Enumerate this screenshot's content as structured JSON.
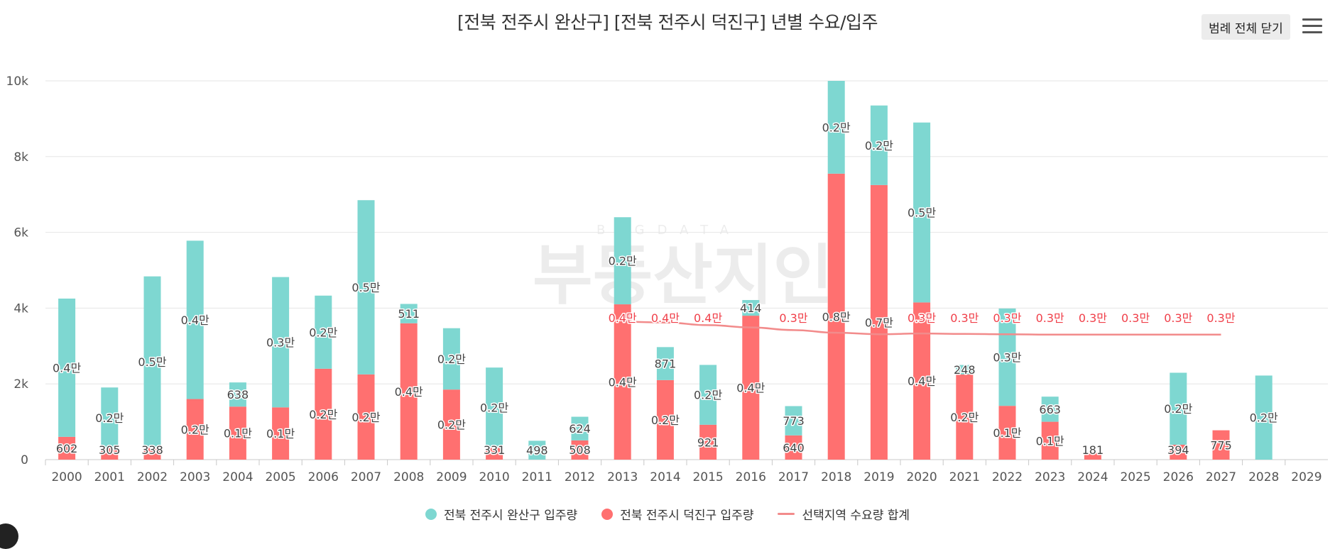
{
  "chart_data": {
    "type": "bar",
    "stacked": true,
    "title": "[전북 전주시 완산구] [전북 전주시 덕진구] 년별 수요/입주",
    "categories": [
      "2000",
      "2001",
      "2002",
      "2003",
      "2004",
      "2005",
      "2006",
      "2007",
      "2008",
      "2009",
      "2010",
      "2011",
      "2012",
      "2013",
      "2014",
      "2015",
      "2016",
      "2017",
      "2018",
      "2019",
      "2020",
      "2021",
      "2022",
      "2023",
      "2024",
      "2025",
      "2026",
      "2027",
      "2028",
      "2029"
    ],
    "ylim": [
      0,
      10000
    ],
    "yticks": [
      0,
      2000,
      4000,
      6000,
      8000,
      10000
    ],
    "ytick_labels": [
      "0",
      "2k",
      "4k",
      "6k",
      "8k",
      "10k"
    ],
    "grid": true,
    "legend_position": "bottom",
    "series": [
      {
        "name": "전북 전주시 덕진구 입주량",
        "kind": "bar",
        "color": "#ff7070",
        "values": [
          602,
          305,
          338,
          1600,
          1400,
          1380,
          2400,
          2250,
          3600,
          1850,
          331,
          0,
          508,
          4100,
          2100,
          921,
          3800,
          640,
          7550,
          7250,
          4150,
          2250,
          1420,
          1000,
          181,
          0,
          394,
          775,
          0,
          0
        ],
        "labels": [
          "602",
          "305",
          "338",
          "0.2만",
          "0.1만",
          "0.1만",
          "0.2만",
          "0.2만",
          "0.4만",
          "0.2만",
          "331",
          "",
          "508",
          "0.4만",
          "0.2만",
          "921",
          "0.4만",
          "640",
          "0.8만",
          "0.7만",
          "0.4만",
          "0.2만",
          "0.1만",
          "0.1만",
          "181",
          "",
          "394",
          "775",
          "",
          ""
        ]
      },
      {
        "name": "전북 전주시 완산구 입주량",
        "kind": "bar",
        "color": "#7ed7d1",
        "values": [
          3650,
          1600,
          4500,
          4180,
          638,
          3440,
          1930,
          4600,
          511,
          1620,
          2100,
          498,
          624,
          2300,
          871,
          1580,
          414,
          773,
          2450,
          2100,
          4750,
          248,
          2570,
          663,
          0,
          0,
          1900,
          0,
          2220,
          0
        ],
        "labels": [
          "0.4만",
          "0.2만",
          "0.5만",
          "0.4만",
          "638",
          "0.3만",
          "0.2만",
          "0.5만",
          "511",
          "0.2만",
          "0.2만",
          "498",
          "624",
          "0.2만",
          "871",
          "0.2만",
          "414",
          "773",
          "0.2만",
          "0.2만",
          "0.5만",
          "248",
          "0.3만",
          "663",
          "",
          "",
          "0.2만",
          "",
          "0.2만",
          ""
        ]
      },
      {
        "name": "선택지역 수요량 합계",
        "kind": "line",
        "color": "#f28b8b",
        "values": [
          null,
          null,
          null,
          null,
          null,
          null,
          null,
          null,
          null,
          null,
          null,
          null,
          null,
          3640,
          3620,
          3550,
          3490,
          3420,
          3350,
          3310,
          3330,
          3320,
          3310,
          3300,
          3300,
          3300,
          3300,
          3300,
          null,
          null
        ],
        "labels": [
          "",
          "",
          "",
          "",
          "",
          "",
          "",
          "",
          "",
          "",
          "",
          "",
          "",
          "0.4만",
          "0.4만",
          "0.4만",
          "",
          "0.3만",
          "",
          "",
          "0.3만",
          "0.3만",
          "0.3만",
          "0.3만",
          "0.3만",
          "0.3만",
          "0.3만",
          "0.3만",
          "",
          ""
        ]
      }
    ]
  },
  "header": {
    "legend_toggle_label": "범례 전체 닫기",
    "menu_icon": "hamburger-menu-icon"
  },
  "legend": {
    "items": [
      {
        "label": "전북 전주시 완산구 입주량",
        "color": "#7ed7d1",
        "symbol": "circle"
      },
      {
        "label": "전북 전주시 덕진구 입주량",
        "color": "#ff7070",
        "symbol": "circle"
      },
      {
        "label": "선택지역 수요량 합계",
        "color": "#f28b8b",
        "symbol": "line"
      }
    ]
  },
  "watermark": {
    "text": "부동산지인",
    "subtext": "BIGDATA"
  }
}
